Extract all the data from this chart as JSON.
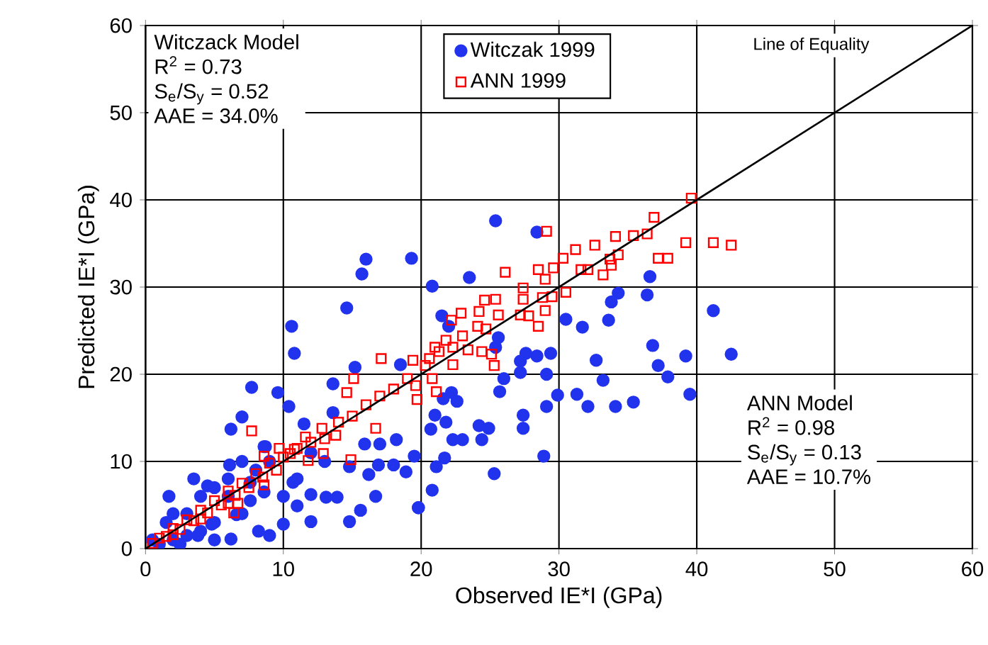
{
  "chart_data": {
    "type": "scatter",
    "xlabel": "Observed IE*I (GPa)",
    "ylabel": "Predicted IE*I (GPa)",
    "xlim": [
      0,
      60
    ],
    "ylim": [
      0,
      60
    ],
    "xticks": [
      0,
      10,
      20,
      30,
      40,
      50,
      60
    ],
    "yticks": [
      0,
      10,
      20,
      30,
      40,
      50,
      60
    ],
    "grid": true,
    "legend": "top",
    "annotations": [
      "Witczack Model",
      "R$^{2}$ = 0.73",
      "S$_{e}$/S$_{y}$ = 0.52",
      "AAE = 34.0%",
      "Line of Equality",
      "ANN Model",
      "R$^{2}$ = 0.98",
      "S$_{e}$/S$_{y}$ = 0.13",
      "AAE = 10.7%"
    ],
    "series": [
      {
        "name": "Witczak 1999",
        "color": "#2233ee",
        "marker": "circle",
        "x": [
          16.0,
          15.7,
          19.3,
          14.6,
          10.6,
          10.8,
          7.7,
          9.6,
          7.0,
          6.2,
          25.4,
          28.4,
          23.5,
          20.8,
          36.6,
          36.4,
          34.3,
          33.8,
          41.2,
          42.5,
          39.2,
          39.5,
          36.8,
          37.2,
          37.9,
          33.6,
          31.7,
          30.5,
          32.7,
          33.2,
          35.4,
          34.1,
          32.1,
          31.3,
          29.9,
          29.1,
          29.1,
          29.4,
          28.4,
          27.6,
          27.2,
          27.2,
          25.7,
          27.4,
          27.4,
          28.9,
          25.3,
          24.9,
          24.2,
          24.4,
          23.0,
          22.3,
          21.8,
          21.0,
          20.7,
          22.6,
          22.2,
          21.6,
          21.7,
          21.1,
          20.8,
          19.8,
          25.6,
          25.4,
          26.0,
          21.5,
          22.0,
          13.6,
          15.2,
          18.5,
          10.4,
          11.5,
          13.6,
          8.7,
          15.9,
          17.0,
          18.2,
          16.9,
          14.8,
          16.2,
          18.0,
          18.9,
          13.9,
          13.1,
          12.0,
          11.0,
          10.0,
          12.0,
          14.8,
          16.7,
          15.6,
          8.2,
          6.2,
          6.6,
          7.6,
          8.6,
          4.8,
          3.8,
          1.7,
          4.5,
          6.1,
          7.6,
          8.6,
          10.7,
          19.5,
          19.8,
          1.0,
          2.0,
          3.0,
          0.5,
          1.5,
          2.5,
          3.0,
          4.0,
          5.0,
          5.0,
          6.0,
          7.0,
          4.0,
          2.0,
          3.5,
          6.0,
          8.0,
          9.0,
          7.0,
          10.0,
          11.0,
          12.0,
          13.0,
          9.0,
          5.0
        ],
        "values": [
          33.2,
          31.5,
          33.3,
          27.6,
          25.5,
          22.4,
          18.5,
          17.9,
          15.1,
          13.7,
          37.6,
          36.3,
          31.1,
          30.1,
          31.2,
          29.1,
          29.3,
          28.3,
          27.3,
          22.3,
          22.1,
          17.7,
          23.3,
          21.0,
          19.7,
          26.2,
          25.4,
          26.3,
          21.6,
          19.3,
          16.8,
          16.3,
          16.3,
          17.7,
          17.6,
          16.3,
          20.0,
          22.4,
          22.1,
          22.4,
          21.5,
          20.2,
          18.0,
          15.3,
          13.8,
          10.6,
          8.6,
          13.8,
          14.1,
          12.5,
          12.5,
          12.5,
          14.5,
          15.3,
          13.7,
          16.9,
          17.9,
          17.2,
          10.4,
          9.4,
          6.7,
          4.7,
          24.2,
          23.1,
          19.5,
          26.7,
          25.5,
          18.9,
          20.8,
          21.1,
          16.3,
          14.3,
          15.6,
          11.7,
          12.0,
          12.0,
          12.5,
          9.6,
          9.4,
          8.5,
          9.6,
          8.8,
          5.9,
          5.9,
          6.2,
          4.9,
          2.8,
          3.1,
          3.1,
          6.0,
          4.4,
          2.0,
          1.1,
          3.9,
          5.5,
          6.5,
          2.8,
          1.5,
          6.0,
          7.2,
          9.6,
          7.6,
          11.7,
          7.6,
          10.6,
          4.7,
          0.5,
          1.0,
          1.5,
          1.0,
          3.0,
          0.5,
          4.0,
          2.0,
          3.0,
          1.0,
          6.0,
          4.0,
          6.0,
          4.0,
          8.0,
          8.0,
          9.0,
          10.0,
          10.0,
          6.0,
          8.0,
          11.0,
          10.0,
          1.5,
          7.0
        ]
      },
      {
        "name": "ANN 1999",
        "color": "#ff0000",
        "marker": "square",
        "x": [
          39.6,
          36.9,
          39.2,
          41.2,
          42.5,
          37.2,
          37.9,
          36.4,
          35.4,
          34.1,
          34.3,
          33.7,
          33.8,
          33.2,
          32.6,
          32.1,
          31.6,
          31.2,
          30.3,
          29.6,
          29.1,
          28.5,
          29.0,
          30.5,
          29.5,
          28.8,
          29.0,
          28.5,
          27.4,
          27.4,
          27.8,
          27.2,
          26.1,
          25.6,
          25.4,
          24.6,
          24.2,
          24.1,
          24.7,
          25.1,
          25.3,
          24.4,
          23.4,
          22.9,
          22.2,
          23.0,
          22.3,
          21.8,
          21.3,
          21.0,
          20.6,
          22.3,
          20.3,
          20.8,
          21.1,
          19.7,
          19.6,
          17.1,
          19.4,
          15.1,
          14.6,
          16.7,
          14.9,
          12.8,
          11.6,
          12.9,
          7.7,
          9.7,
          8.6,
          8.6,
          6.7,
          6.4,
          13.8,
          10.8,
          11.8,
          0.5,
          1.0,
          1.5,
          2.0,
          2.5,
          3.0,
          3.5,
          4.0,
          4.5,
          5.0,
          5.5,
          6.0,
          6.5,
          7.0,
          7.5,
          8.0,
          8.5,
          9.0,
          9.5,
          10.0,
          10.5,
          11.0,
          12.0,
          13.0,
          14.0,
          15.0,
          16.0,
          17.0,
          18.0,
          19.0,
          4.0,
          2.0,
          6.0
        ],
        "values": [
          40.2,
          38.0,
          35.1,
          35.1,
          34.8,
          33.3,
          33.3,
          36.1,
          35.9,
          35.8,
          33.7,
          33.2,
          32.5,
          31.4,
          34.8,
          32.0,
          32.0,
          34.3,
          33.3,
          32.2,
          36.4,
          32.0,
          30.9,
          29.4,
          28.9,
          28.8,
          27.3,
          25.5,
          29.9,
          28.6,
          26.7,
          26.8,
          31.7,
          26.8,
          28.6,
          28.5,
          27.2,
          25.5,
          25.2,
          22.3,
          21.0,
          22.6,
          22.8,
          27.0,
          26.2,
          24.4,
          23.1,
          23.9,
          22.6,
          23.1,
          21.8,
          21.1,
          21.0,
          19.5,
          18.0,
          17.1,
          18.7,
          21.8,
          21.6,
          19.5,
          17.9,
          13.8,
          10.2,
          13.8,
          12.8,
          10.9,
          13.5,
          11.5,
          10.6,
          7.3,
          5.2,
          4.1,
          13.0,
          11.4,
          10.1,
          0.6,
          1.2,
          1.4,
          2.3,
          2.2,
          3.3,
          3.2,
          4.4,
          4.1,
          5.5,
          5.0,
          6.6,
          6.1,
          7.5,
          7.0,
          8.6,
          8.2,
          9.8,
          9.0,
          10.5,
          10.9,
          11.5,
          12.2,
          12.6,
          14.5,
          15.2,
          16.5,
          17.5,
          18.3,
          19.5,
          3.4,
          1.6,
          5.2
        ]
      },
      {
        "type": "line",
        "color": "#000000",
        "marker": "none",
        "line_style": "solid",
        "x": [
          0,
          60
        ],
        "values": [
          0,
          60
        ]
      }
    ]
  }
}
